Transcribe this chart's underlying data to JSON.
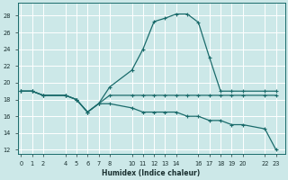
{
  "xlabel": "Humidex (Indice chaleur)",
  "bg_color": "#cce8e8",
  "grid_color": "#ffffff",
  "line_color": "#1a6b6b",
  "series1_x": [
    0,
    1,
    2,
    4,
    5,
    6,
    7,
    8,
    10,
    11,
    12,
    13,
    14,
    15,
    16,
    17,
    18,
    19,
    20,
    22,
    23
  ],
  "series1_y": [
    19.0,
    19.0,
    18.5,
    18.5,
    18.0,
    16.5,
    17.5,
    19.5,
    21.5,
    24.0,
    27.3,
    27.7,
    28.2,
    28.2,
    27.2,
    23.0,
    19.0,
    19.0,
    19.0,
    19.0,
    19.0
  ],
  "series2_x": [
    0,
    1,
    2,
    4,
    5,
    6,
    7,
    8,
    10,
    11,
    12,
    13,
    14,
    15,
    16,
    17,
    18,
    19,
    20,
    22,
    23
  ],
  "series2_y": [
    19.0,
    19.0,
    18.5,
    18.5,
    18.0,
    16.5,
    17.5,
    18.5,
    18.5,
    18.5,
    18.5,
    18.5,
    18.5,
    18.5,
    18.5,
    18.5,
    18.5,
    18.5,
    18.5,
    18.5,
    18.5
  ],
  "series3_x": [
    0,
    1,
    2,
    4,
    5,
    6,
    7,
    8,
    10,
    11,
    12,
    13,
    14,
    15,
    16,
    17,
    18,
    19,
    20,
    22,
    23
  ],
  "series3_y": [
    19.0,
    19.0,
    18.5,
    18.5,
    18.0,
    16.5,
    17.5,
    17.5,
    17.0,
    16.5,
    16.5,
    16.5,
    16.5,
    16.0,
    16.0,
    15.5,
    15.5,
    15.0,
    15.0,
    14.5,
    12.0
  ],
  "ylim": [
    11.5,
    29.5
  ],
  "xlim": [
    -0.3,
    23.8
  ],
  "yticks": [
    12,
    14,
    16,
    18,
    20,
    22,
    24,
    26,
    28
  ],
  "xticks": [
    0,
    1,
    2,
    4,
    5,
    6,
    7,
    8,
    10,
    11,
    12,
    13,
    14,
    16,
    17,
    18,
    19,
    20,
    22,
    23
  ],
  "xlabel_fontsize": 5.5,
  "tick_fontsize": 4.8
}
